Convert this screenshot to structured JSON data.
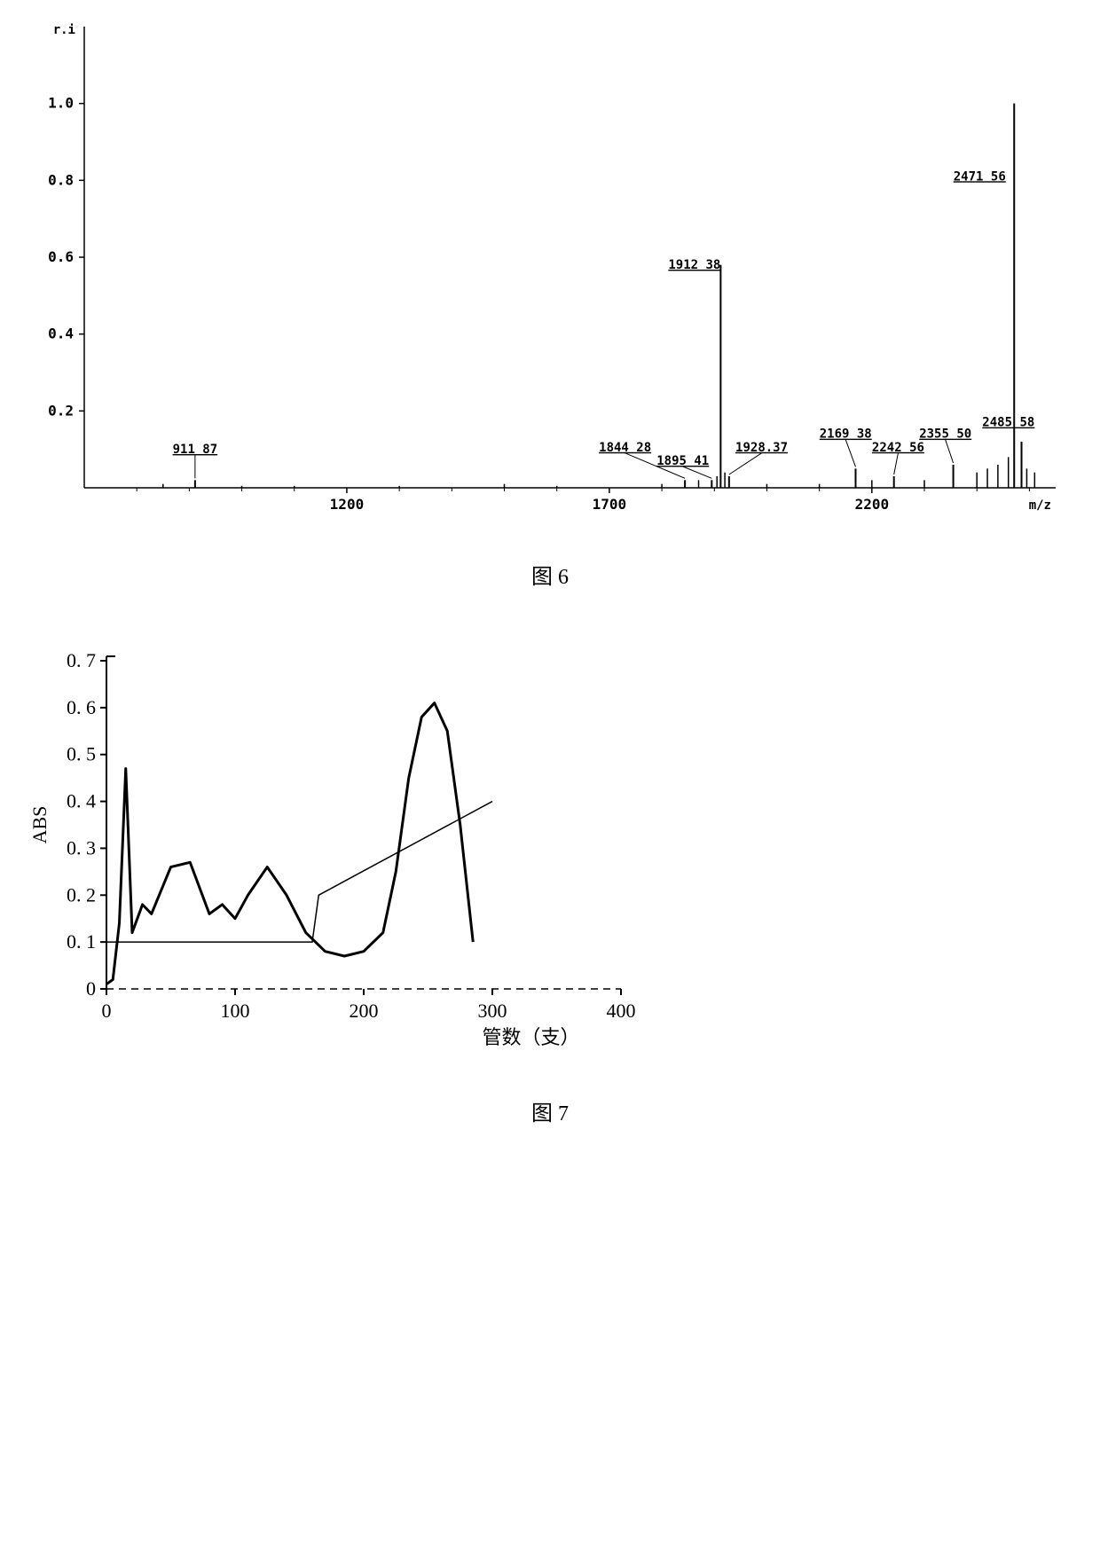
{
  "figure6": {
    "type": "mass-spectrum",
    "caption": "图 6",
    "ylabel": "r.i",
    "xlabel": "m/z",
    "ylim": [
      0,
      1.2
    ],
    "yticks": [
      0.2,
      0.4,
      0.6,
      0.8,
      1.0
    ],
    "xticks": [
      1200,
      1700,
      2200
    ],
    "xlim": [
      700,
      2550
    ],
    "peaks": [
      {
        "mz": 911,
        "intensity": 0.02,
        "label": "911 87"
      },
      {
        "mz": 1844,
        "intensity": 0.02,
        "label": "1844 28"
      },
      {
        "mz": 1895,
        "intensity": 0.02,
        "label": "1895 41"
      },
      {
        "mz": 1912,
        "intensity": 0.58,
        "label": "1912 38"
      },
      {
        "mz": 1928,
        "intensity": 0.03,
        "label": "1928.37"
      },
      {
        "mz": 2169,
        "intensity": 0.05,
        "label": "2169 38"
      },
      {
        "mz": 2242,
        "intensity": 0.03,
        "label": "2242 56"
      },
      {
        "mz": 2355,
        "intensity": 0.06,
        "label": "2355 50"
      },
      {
        "mz": 2471,
        "intensity": 1.0,
        "label": "2471 56"
      },
      {
        "mz": 2485,
        "intensity": 0.12,
        "label": "2485 58"
      }
    ],
    "noise_peaks": [
      {
        "mz": 850,
        "intensity": 0.01
      },
      {
        "mz": 1000,
        "intensity": 0.005
      },
      {
        "mz": 1100,
        "intensity": 0.005
      },
      {
        "mz": 1300,
        "intensity": 0.005
      },
      {
        "mz": 1500,
        "intensity": 0.01
      },
      {
        "mz": 1600,
        "intensity": 0.005
      },
      {
        "mz": 1800,
        "intensity": 0.01
      },
      {
        "mz": 1870,
        "intensity": 0.02
      },
      {
        "mz": 1905,
        "intensity": 0.03
      },
      {
        "mz": 1920,
        "intensity": 0.04
      },
      {
        "mz": 2000,
        "intensity": 0.01
      },
      {
        "mz": 2100,
        "intensity": 0.01
      },
      {
        "mz": 2200,
        "intensity": 0.02
      },
      {
        "mz": 2300,
        "intensity": 0.02
      },
      {
        "mz": 2400,
        "intensity": 0.04
      },
      {
        "mz": 2420,
        "intensity": 0.05
      },
      {
        "mz": 2440,
        "intensity": 0.06
      },
      {
        "mz": 2460,
        "intensity": 0.08
      },
      {
        "mz": 2495,
        "intensity": 0.05
      },
      {
        "mz": 2510,
        "intensity": 0.04
      }
    ],
    "stroke_color": "#000000",
    "background_color": "#ffffff",
    "label_fontsize": 14,
    "tick_fontsize": 16
  },
  "figure7": {
    "type": "line-chromatogram",
    "caption": "图 7",
    "ylabel": "ABS",
    "xlabel": "管数（支）",
    "ylim": [
      0,
      0.7
    ],
    "yticks": [
      0,
      0.1,
      0.2,
      0.3,
      0.4,
      0.5,
      0.6,
      0.7
    ],
    "xlim": [
      0,
      400
    ],
    "xticks": [
      0,
      100,
      200,
      300,
      400
    ],
    "curve": [
      {
        "x": 0,
        "y": 0.01
      },
      {
        "x": 5,
        "y": 0.02
      },
      {
        "x": 10,
        "y": 0.14
      },
      {
        "x": 15,
        "y": 0.47
      },
      {
        "x": 20,
        "y": 0.12
      },
      {
        "x": 28,
        "y": 0.18
      },
      {
        "x": 35,
        "y": 0.16
      },
      {
        "x": 50,
        "y": 0.26
      },
      {
        "x": 65,
        "y": 0.27
      },
      {
        "x": 80,
        "y": 0.16
      },
      {
        "x": 90,
        "y": 0.18
      },
      {
        "x": 100,
        "y": 0.15
      },
      {
        "x": 110,
        "y": 0.2
      },
      {
        "x": 125,
        "y": 0.26
      },
      {
        "x": 140,
        "y": 0.2
      },
      {
        "x": 155,
        "y": 0.12
      },
      {
        "x": 170,
        "y": 0.08
      },
      {
        "x": 185,
        "y": 0.07
      },
      {
        "x": 200,
        "y": 0.08
      },
      {
        "x": 215,
        "y": 0.12
      },
      {
        "x": 225,
        "y": 0.25
      },
      {
        "x": 235,
        "y": 0.45
      },
      {
        "x": 245,
        "y": 0.58
      },
      {
        "x": 255,
        "y": 0.61
      },
      {
        "x": 265,
        "y": 0.55
      },
      {
        "x": 275,
        "y": 0.35
      },
      {
        "x": 285,
        "y": 0.1
      }
    ],
    "gradient_line": [
      {
        "x": 0,
        "y": 0.1
      },
      {
        "x": 160,
        "y": 0.1
      },
      {
        "x": 165,
        "y": 0.2
      },
      {
        "x": 300,
        "y": 0.4
      }
    ],
    "stroke_color": "#000000",
    "background_color": "#ffffff",
    "curve_width": 3,
    "gradient_width": 1.5,
    "label_fontsize": 22,
    "tick_fontsize": 22
  }
}
